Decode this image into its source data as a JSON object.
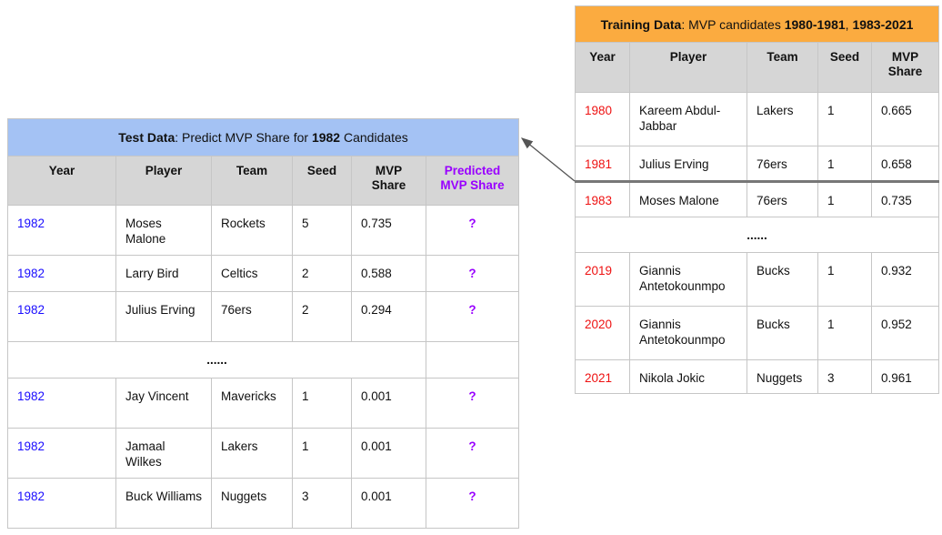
{
  "colors": {
    "test_year": "#1a0dff",
    "train_year": "#ee1111",
    "predicted": "#9900ff",
    "test_title_bg": "#a4c2f4",
    "train_title_bg": "#fbab40"
  },
  "test": {
    "title_bold": "Test Data",
    "title_mid": ": Predict MVP Share for ",
    "title_bold2": "1982",
    "title_end": " Candidates",
    "headers": [
      "Year",
      "Player",
      "Team",
      "Seed",
      "MVP Share",
      "Predicted MVP Share"
    ],
    "rows": [
      [
        "1982",
        "Moses Malone",
        "Rockets",
        "5",
        "0.735",
        "?"
      ],
      [
        "1982",
        "Larry Bird",
        "Celtics",
        "2",
        "0.588",
        "?"
      ],
      [
        "1982",
        "Julius Erving",
        "76ers",
        "2",
        "0.294",
        "?"
      ],
      "......",
      [
        "1982",
        "Jay Vincent",
        "Mavericks",
        "1",
        "0.001",
        "?"
      ],
      [
        "1982",
        "Jamaal Wilkes",
        "Lakers",
        "1",
        "0.001",
        "?"
      ],
      [
        "1982",
        "Buck Williams",
        "Nuggets",
        "3",
        "0.001",
        "?"
      ]
    ]
  },
  "train": {
    "title_bold": "Training Data",
    "title_mid": ": MVP candidates ",
    "title_bold2": "1980-1981",
    "title_sep": ", ",
    "title_bold3": "1983-2021",
    "headers": [
      "Year",
      "Player",
      "Team",
      "Seed",
      "MVP Share"
    ],
    "rows": [
      [
        "1980",
        "Kareem Abdul-Jabbar",
        "Lakers",
        "1",
        "0.665"
      ],
      [
        "1981",
        "Julius Erving",
        "76ers",
        "1",
        "0.658"
      ],
      [
        "1983",
        "Moses Malone",
        "76ers",
        "1",
        "0.735"
      ],
      "......",
      [
        "2019",
        "Giannis Antetokounmpo",
        "Bucks",
        "1",
        "0.932"
      ],
      [
        "2020",
        "Giannis Antetokounmpo",
        "Bucks",
        "1",
        "0.952"
      ],
      [
        "2021",
        "Nikola Jokic",
        "Nuggets",
        "3",
        "0.961"
      ]
    ]
  }
}
